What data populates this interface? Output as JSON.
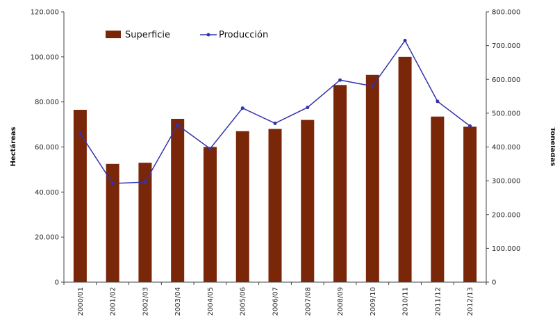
{
  "chart_data": {
    "type": "bar",
    "title": "",
    "categories": [
      "2000/01",
      "2001/02",
      "2002/03",
      "2003/04",
      "2004/05",
      "2005/06",
      "2006/07",
      "2007/08",
      "2008/09",
      "2009/10",
      "2010/11",
      "2011/12",
      "2012/13"
    ],
    "series": [
      {
        "name": "Superficie",
        "type": "bar",
        "axis": "left",
        "color": "#7a2608",
        "values": [
          76500,
          52500,
          53000,
          72500,
          60000,
          67000,
          68000,
          72000,
          87500,
          92000,
          100000,
          73500,
          69000
        ]
      },
      {
        "name": "Producción",
        "type": "line",
        "axis": "right",
        "color": "#3333aa",
        "values": [
          440000,
          292000,
          296000,
          465000,
          395000,
          515000,
          470000,
          517000,
          598000,
          580000,
          715000,
          535000,
          462000
        ]
      }
    ],
    "y_left": {
      "label": "Hectáreas",
      "ylim": [
        0,
        120000
      ],
      "ticks": [
        "0",
        "20.000",
        "40.000",
        "60.000",
        "80.000",
        "100.000",
        "120.000"
      ]
    },
    "y_right": {
      "label": "Toneladas",
      "ylim": [
        0,
        800000
      ],
      "ticks": [
        "0",
        "100.000",
        "200.000",
        "300.000",
        "400.000",
        "500.000",
        "600.000",
        "700.000",
        "800.000"
      ]
    },
    "grid": false,
    "legend": {
      "placement": "top-left",
      "entries": [
        "Superficie",
        "Producción"
      ]
    }
  }
}
